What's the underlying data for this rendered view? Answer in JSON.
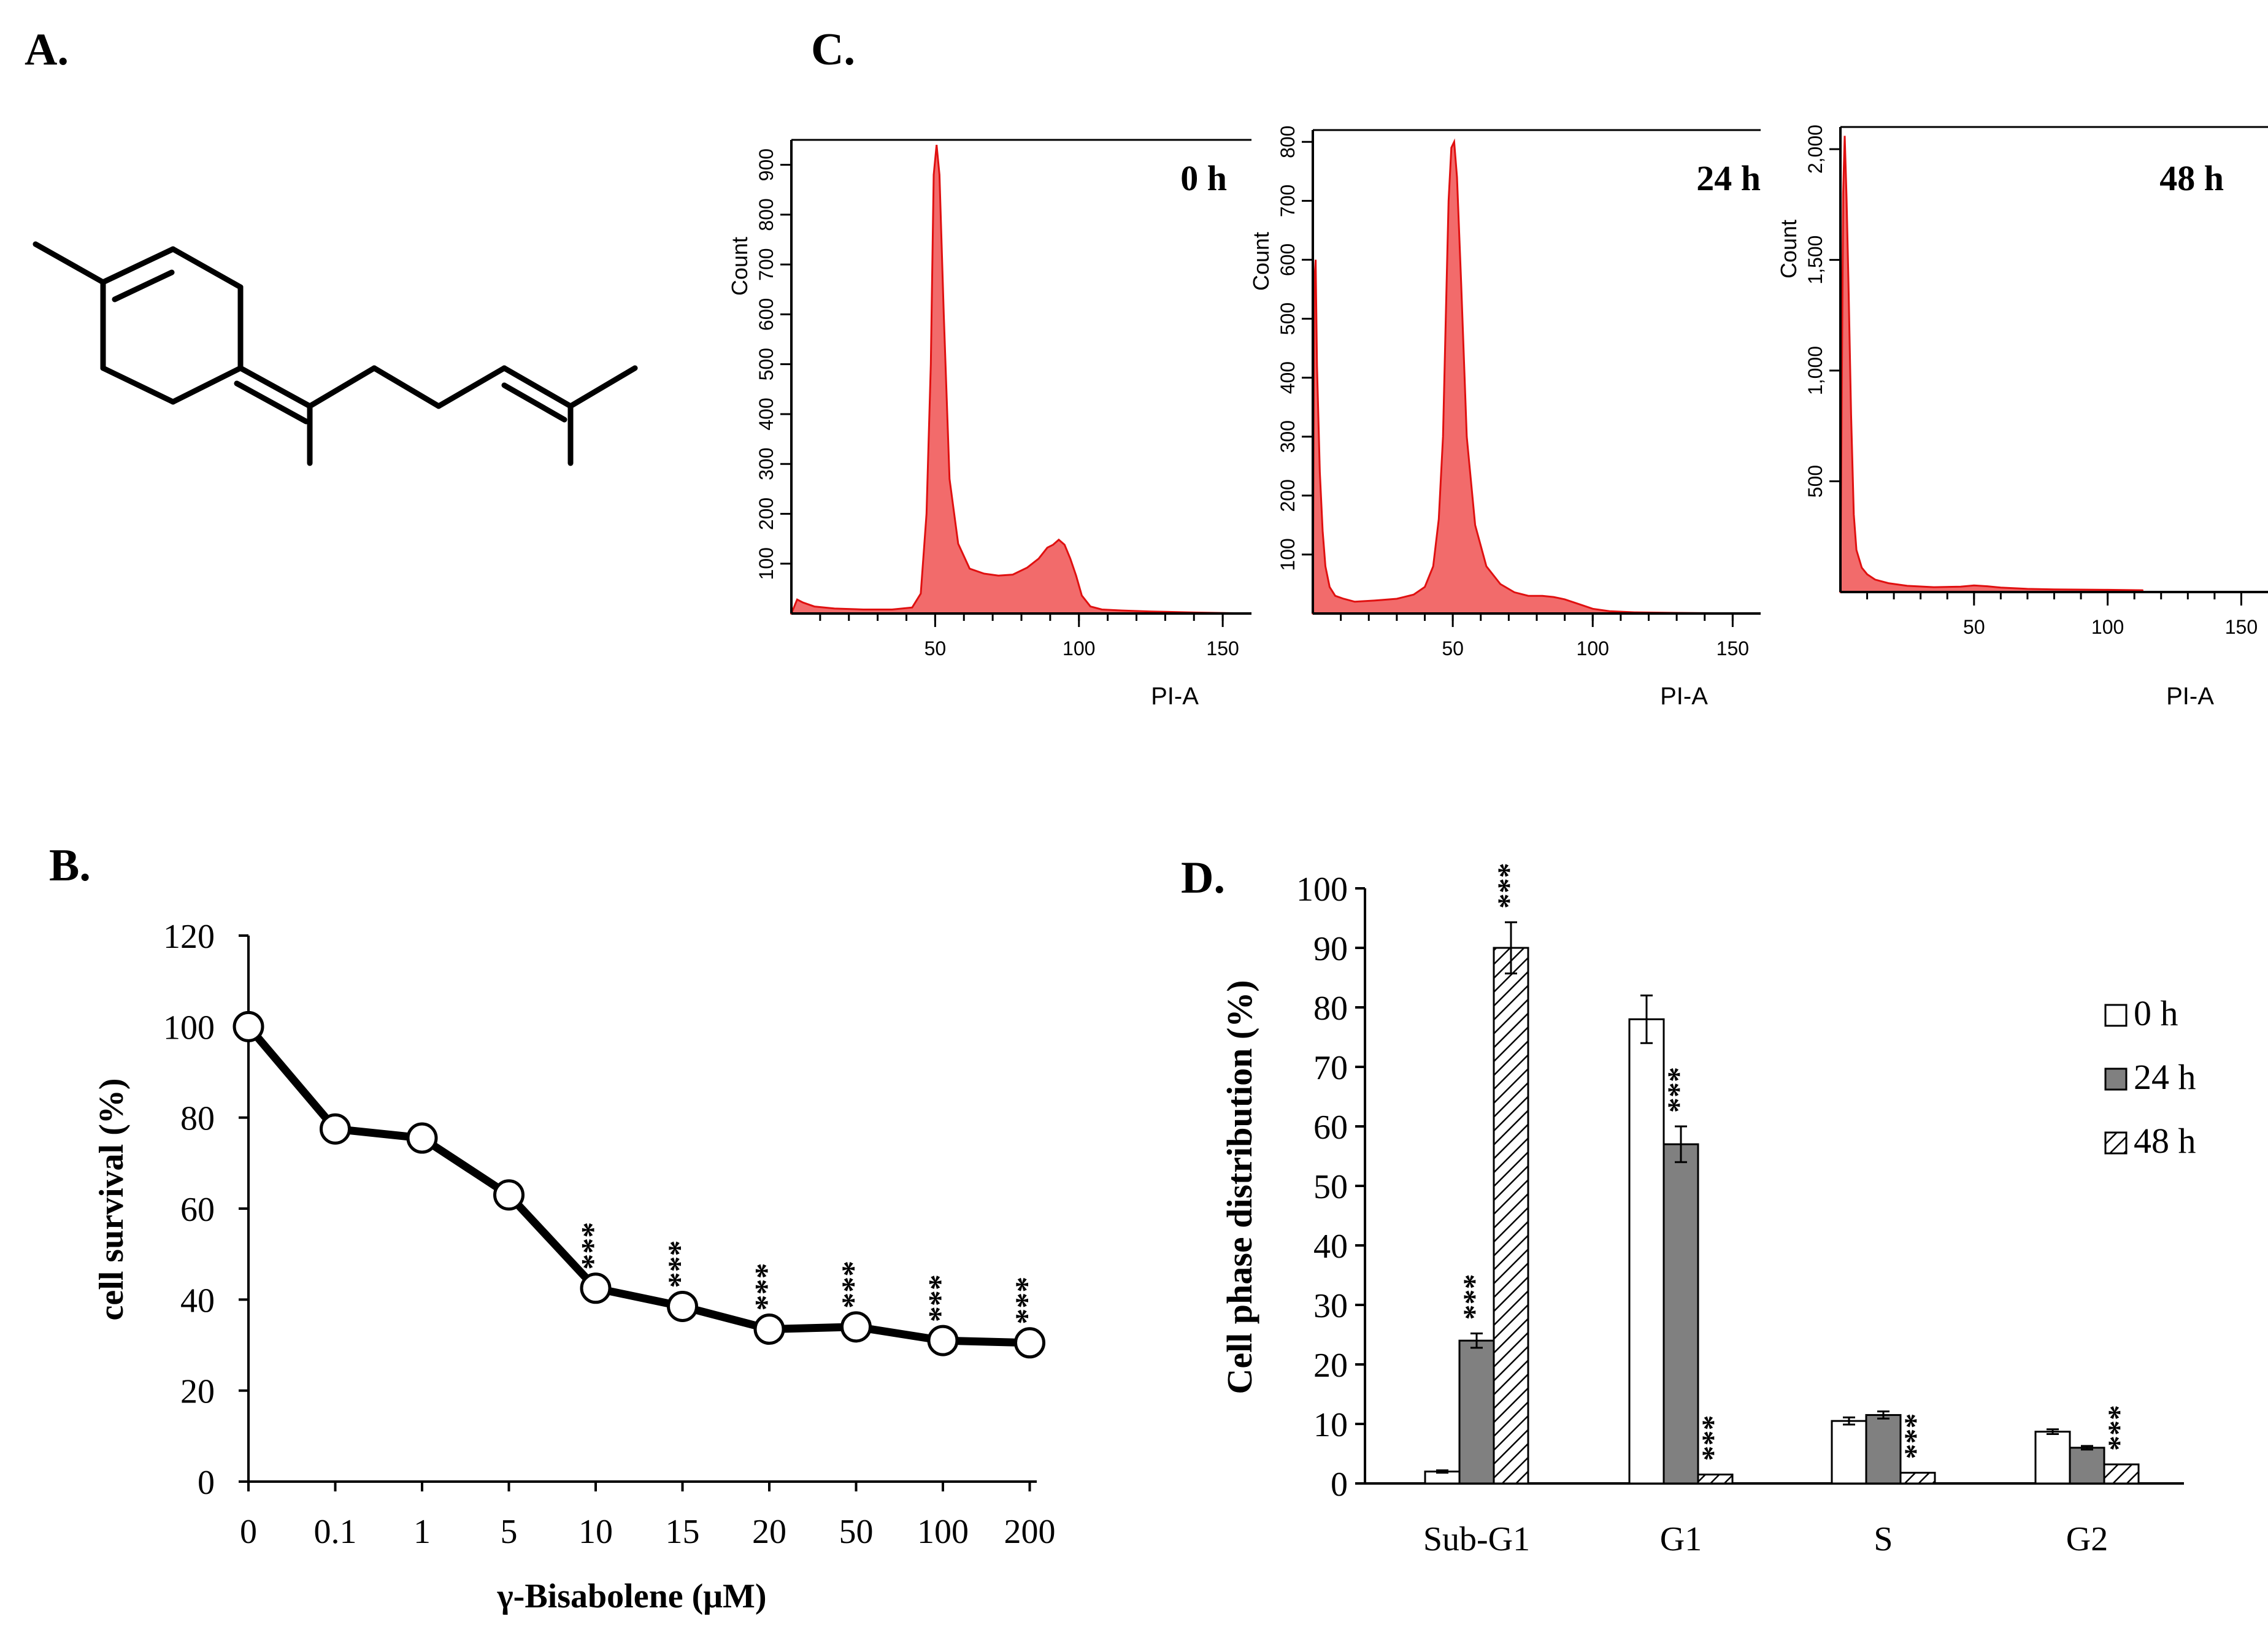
{
  "panels": {
    "a": {
      "letter": "A."
    },
    "b": {
      "letter": "B."
    },
    "c": {
      "letter": "C."
    },
    "d": {
      "letter": "D."
    }
  },
  "colors": {
    "histogram_fill": "#f26b6b",
    "histogram_edge": "#e01010",
    "bar_24h": "#808080",
    "bar_0h": "#ffffff",
    "ink": "#000000"
  },
  "chart_data": [
    {
      "id": "flow-histograms",
      "type": "area",
      "xlabel": "PI-A",
      "ylabel": "Count",
      "panels": [
        {
          "label": "0 h",
          "xlim": [
            0,
            160
          ],
          "ylim": [
            0,
            950
          ],
          "xticks": [
            50,
            100,
            150
          ],
          "yticks": [
            100,
            200,
            300,
            400,
            500,
            600,
            700,
            800,
            900
          ],
          "ytick_labels": [
            "100",
            "200",
            "300",
            "400",
            "500",
            "600",
            "700",
            "800",
            "900"
          ],
          "x": [
            0,
            2,
            4,
            8,
            15,
            25,
            35,
            42,
            45,
            47,
            48.5,
            49.5,
            50.5,
            51.5,
            53,
            55,
            58,
            62,
            67,
            72,
            77,
            82,
            86,
            89,
            91,
            93,
            95,
            97,
            99,
            101,
            104,
            108,
            115,
            125,
            140,
            160
          ],
          "y": [
            0,
            28,
            22,
            14,
            10,
            8,
            8,
            12,
            40,
            200,
            500,
            880,
            940,
            880,
            600,
            270,
            140,
            90,
            80,
            76,
            78,
            92,
            110,
            132,
            138,
            148,
            138,
            110,
            76,
            36,
            14,
            8,
            6,
            4,
            2,
            0
          ]
        },
        {
          "label": "24 h",
          "xlim": [
            0,
            160
          ],
          "ylim": [
            0,
            820
          ],
          "xticks": [
            50,
            100,
            150
          ],
          "yticks": [
            100,
            200,
            300,
            400,
            500,
            600,
            700,
            800
          ],
          "ytick_labels": [
            "100",
            "200",
            "300",
            "400",
            "500",
            "600",
            "700",
            "800"
          ],
          "x": [
            0,
            0.5,
            1,
            1.5,
            2.5,
            3.5,
            4.5,
            6,
            8,
            11,
            15,
            22,
            30,
            36,
            40,
            43,
            45,
            46.5,
            47.5,
            48.5,
            49.5,
            50.5,
            51.5,
            53,
            55,
            58,
            62,
            67,
            72,
            77,
            82,
            86,
            90,
            95,
            100,
            106,
            115,
            130,
            160
          ],
          "y": [
            0,
            560,
            600,
            420,
            240,
            140,
            80,
            45,
            30,
            25,
            20,
            22,
            25,
            32,
            45,
            80,
            160,
            300,
            500,
            700,
            790,
            800,
            740,
            560,
            300,
            150,
            80,
            50,
            36,
            30,
            30,
            28,
            24,
            16,
            8,
            4,
            2,
            1,
            0
          ]
        },
        {
          "label": "48 h",
          "xlim": [
            0,
            160
          ],
          "ylim": [
            0,
            2100
          ],
          "xticks": [
            50,
            100,
            150
          ],
          "yticks": [
            500,
            1000,
            1500,
            2000
          ],
          "ytick_labels": [
            "500",
            "1,000",
            "1,500",
            "2,000"
          ],
          "x": [
            0,
            1,
            1.6,
            2.3,
            3,
            4,
            5,
            6,
            8,
            10,
            13,
            18,
            25,
            35,
            45,
            50,
            55,
            60,
            70,
            80,
            100,
            113,
            113.2,
            160
          ],
          "y": [
            0,
            1800,
            2060,
            1780,
            1400,
            800,
            350,
            190,
            110,
            80,
            56,
            40,
            28,
            22,
            24,
            30,
            26,
            20,
            14,
            12,
            10,
            8,
            0,
            0
          ]
        }
      ]
    },
    {
      "id": "cell-survival",
      "type": "line",
      "title": "",
      "xlabel": "γ-Bisabolene (μM)",
      "ylabel": "cell survival (%)",
      "ylim": [
        0,
        120
      ],
      "yticks": [
        0,
        20,
        40,
        60,
        80,
        100,
        120
      ],
      "categories": [
        "0",
        "0.1",
        "1",
        "5",
        "10",
        "15",
        "20",
        "50",
        "100",
        "200"
      ],
      "values": [
        100,
        77.5,
        75.5,
        63,
        42.5,
        38.5,
        33.5,
        34,
        31,
        30.5
      ],
      "annotations": [
        "",
        "",
        "",
        "",
        "***",
        "***",
        "***",
        "***",
        "***",
        "***"
      ]
    },
    {
      "id": "cell-phase",
      "type": "bar",
      "xlabel": "",
      "ylabel": "Cell phase distribution (%)",
      "ylim": [
        0,
        100
      ],
      "yticks": [
        0,
        10,
        20,
        30,
        40,
        50,
        60,
        70,
        80,
        90,
        100
      ],
      "categories": [
        "Sub-G1",
        "G1",
        "S",
        "G2"
      ],
      "legend_position": "right",
      "series": [
        {
          "name": "0 h",
          "style": "white",
          "values": [
            2,
            78,
            10.5,
            8.7
          ],
          "errors": [
            0.2,
            4,
            0.6,
            0.4
          ],
          "annotations": [
            "",
            "",
            "",
            ""
          ]
        },
        {
          "name": "24 h",
          "style": "gray",
          "values": [
            24,
            57,
            11.5,
            6
          ],
          "errors": [
            1.2,
            3,
            0.6,
            0.3
          ],
          "annotations": [
            "***",
            "***",
            "",
            ""
          ]
        },
        {
          "name": "48 h",
          "style": "hatched",
          "values": [
            90,
            1.5,
            1.8,
            3.2
          ],
          "errors": [
            4.3,
            0,
            0,
            0
          ],
          "annotations": [
            "***",
            "***",
            "***",
            "***"
          ]
        }
      ]
    }
  ]
}
